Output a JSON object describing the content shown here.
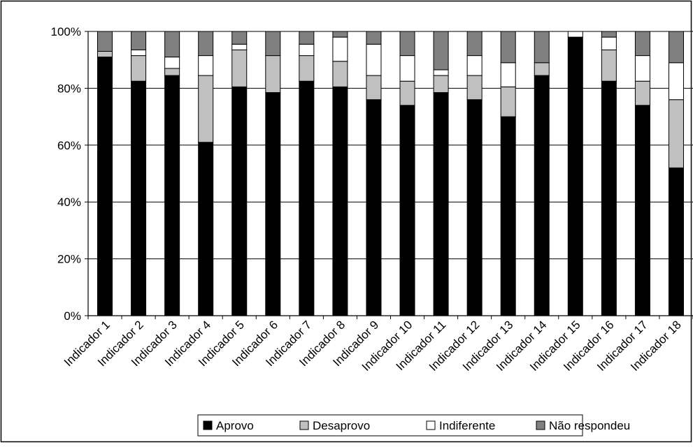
{
  "chart_data": {
    "type": "bar",
    "stacked": true,
    "percent": true,
    "categories": [
      "Indicador 1",
      "Indicador 2",
      "Indicador 3",
      "Indicador 4",
      "Indicador 5",
      "Indicador 6",
      "Indicador 7",
      "Indicador 8",
      "Indicador 9",
      "Indicador 10",
      "Indicador 11",
      "Indicador 12",
      "Indicador 13",
      "Indicador 14",
      "Indicador 15",
      "Indicador 16",
      "Indicador 17",
      "Indicador 18"
    ],
    "series": [
      {
        "name": "Aprovo",
        "color": "#000000",
        "values": [
          91,
          82.5,
          84.5,
          61,
          80.5,
          78.5,
          82.5,
          80.5,
          76,
          74,
          78.5,
          76,
          70,
          84.5,
          98,
          82.5,
          74,
          52
        ]
      },
      {
        "name": "Desaprovo",
        "color": "#c0c0c0",
        "values": [
          2,
          9,
          2.5,
          23.5,
          13,
          13,
          9,
          9,
          8.5,
          8.5,
          6,
          8.5,
          10.5,
          4.5,
          0,
          11,
          8.5,
          24
        ]
      },
      {
        "name": "Indiferente",
        "color": "#ffffff",
        "values": [
          0,
          2,
          4,
          7,
          2,
          0,
          4,
          8.5,
          11,
          9,
          2,
          7,
          8.5,
          0,
          2,
          4.5,
          9,
          13
        ]
      },
      {
        "name": "Não respondeu",
        "color": "#808080",
        "values": [
          7,
          6.5,
          9,
          8.5,
          4.5,
          8.5,
          4.5,
          2,
          4.5,
          8.5,
          13.5,
          8.5,
          11,
          11,
          0,
          2,
          8.5,
          11
        ]
      }
    ],
    "ylim": [
      0,
      100
    ],
    "yticks": [
      "0%",
      "20%",
      "40%",
      "60%",
      "80%",
      "100%"
    ],
    "grid": true,
    "legend_position": "bottom"
  }
}
